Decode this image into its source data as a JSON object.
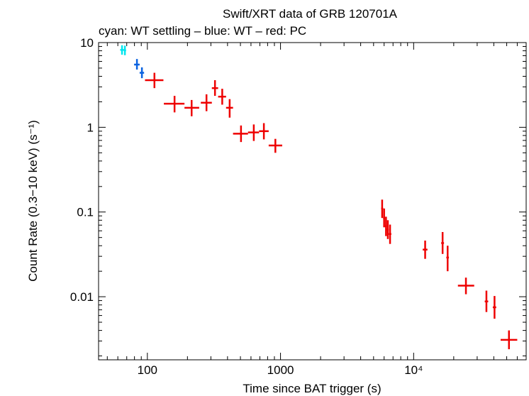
{
  "chart_data": {
    "type": "scatter",
    "title": "Swift/XRT data of GRB 120701A",
    "subtitle": "cyan: WT settling – blue: WT – red: PC",
    "xlabel": "Time since BAT trigger (s)",
    "ylabel": "Count Rate (0.3−10 keV) (s⁻¹)",
    "x_scale": "log",
    "y_scale": "log",
    "xlim": [
      43,
      70000
    ],
    "ylim": [
      0.0018,
      10
    ],
    "x_ticks": [
      {
        "value": 100,
        "label": "100"
      },
      {
        "value": 1000,
        "label": "1000"
      },
      {
        "value": 10000,
        "label": "10⁴"
      }
    ],
    "y_ticks": [
      {
        "value": 10,
        "label": "10"
      },
      {
        "value": 1,
        "label": "1"
      },
      {
        "value": 0.1,
        "label": "0.1"
      },
      {
        "value": 0.01,
        "label": "0.01"
      }
    ],
    "grid": false,
    "series": [
      {
        "color": "#00e5ee",
        "points": [
          {
            "x": 64.5,
            "xlo": 62.5,
            "xhi": 66.5,
            "y": 8.2,
            "ylo": 7.2,
            "yhi": 9.3
          },
          {
            "x": 67.8,
            "xlo": 66.5,
            "xhi": 69.2,
            "y": 8.1,
            "ylo": 7.1,
            "yhi": 9.2
          }
        ]
      },
      {
        "color": "#0a62e0",
        "points": [
          {
            "x": 83.5,
            "xlo": 79.5,
            "xhi": 87.5,
            "y": 5.5,
            "ylo": 4.8,
            "yhi": 6.4
          },
          {
            "x": 91.0,
            "xlo": 87.5,
            "xhi": 94.5,
            "y": 4.4,
            "ylo": 3.8,
            "yhi": 5.1
          }
        ]
      },
      {
        "color": "#ee0000",
        "points": [
          {
            "x": 113,
            "xlo": 96,
            "xhi": 132,
            "y": 3.6,
            "ylo": 2.9,
            "yhi": 4.4
          },
          {
            "x": 160,
            "xlo": 133,
            "xhi": 190,
            "y": 1.9,
            "ylo": 1.5,
            "yhi": 2.35
          },
          {
            "x": 215,
            "xlo": 190,
            "xhi": 245,
            "y": 1.7,
            "ylo": 1.35,
            "yhi": 2.1
          },
          {
            "x": 278,
            "xlo": 252,
            "xhi": 305,
            "y": 1.95,
            "ylo": 1.55,
            "yhi": 2.45
          },
          {
            "x": 322,
            "xlo": 305,
            "xhi": 340,
            "y": 2.9,
            "ylo": 2.35,
            "yhi": 3.6
          },
          {
            "x": 365,
            "xlo": 340,
            "xhi": 390,
            "y": 2.3,
            "ylo": 1.85,
            "yhi": 2.85
          },
          {
            "x": 415,
            "xlo": 390,
            "xhi": 440,
            "y": 1.7,
            "ylo": 1.3,
            "yhi": 2.15
          },
          {
            "x": 505,
            "xlo": 440,
            "xhi": 570,
            "y": 0.84,
            "ylo": 0.67,
            "yhi": 1.05
          },
          {
            "x": 630,
            "xlo": 570,
            "xhi": 690,
            "y": 0.87,
            "ylo": 0.69,
            "yhi": 1.08
          },
          {
            "x": 750,
            "xlo": 690,
            "xhi": 815,
            "y": 0.9,
            "ylo": 0.72,
            "yhi": 1.12
          },
          {
            "x": 915,
            "xlo": 815,
            "xhi": 1030,
            "y": 0.61,
            "ylo": 0.5,
            "yhi": 0.73
          },
          {
            "x": 5800,
            "xlo": 5700,
            "xhi": 5900,
            "y": 0.11,
            "ylo": 0.085,
            "yhi": 0.14
          },
          {
            "x": 6000,
            "xlo": 5900,
            "xhi": 6100,
            "y": 0.085,
            "ylo": 0.066,
            "yhi": 0.11
          },
          {
            "x": 6200,
            "xlo": 6100,
            "xhi": 6300,
            "y": 0.068,
            "ylo": 0.052,
            "yhi": 0.088
          },
          {
            "x": 6400,
            "xlo": 6300,
            "xhi": 6500,
            "y": 0.062,
            "ylo": 0.048,
            "yhi": 0.08
          },
          {
            "x": 6650,
            "xlo": 6500,
            "xhi": 6800,
            "y": 0.055,
            "ylo": 0.042,
            "yhi": 0.071
          },
          {
            "x": 12200,
            "xlo": 11700,
            "xhi": 12700,
            "y": 0.036,
            "ylo": 0.028,
            "yhi": 0.046
          },
          {
            "x": 16500,
            "xlo": 16100,
            "xhi": 16900,
            "y": 0.043,
            "ylo": 0.032,
            "yhi": 0.058
          },
          {
            "x": 18000,
            "xlo": 17600,
            "xhi": 18400,
            "y": 0.029,
            "ylo": 0.02,
            "yhi": 0.04
          },
          {
            "x": 24700,
            "xlo": 21500,
            "xhi": 28500,
            "y": 0.0135,
            "ylo": 0.0107,
            "yhi": 0.0168
          },
          {
            "x": 35200,
            "xlo": 34200,
            "xhi": 36300,
            "y": 0.0088,
            "ylo": 0.0066,
            "yhi": 0.0118
          },
          {
            "x": 40500,
            "xlo": 39300,
            "xhi": 41700,
            "y": 0.0075,
            "ylo": 0.0055,
            "yhi": 0.0102
          },
          {
            "x": 52000,
            "xlo": 45000,
            "xhi": 60000,
            "y": 0.0031,
            "ylo": 0.0024,
            "yhi": 0.004
          }
        ]
      }
    ]
  }
}
